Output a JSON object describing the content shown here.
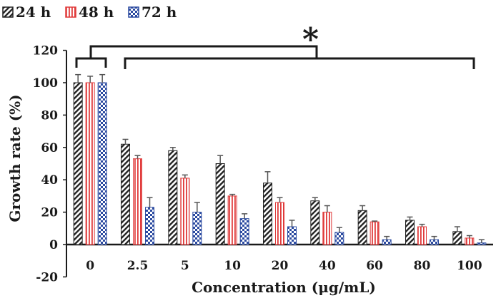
{
  "chart_data": {
    "type": "bar",
    "xlabel": "Concentration (μg/mL)",
    "ylabel": "Growth rate (%)",
    "ylim": [
      -20,
      120
    ],
    "ytick_step": 20,
    "yticks": [
      "-20",
      "0",
      "20",
      "40",
      "60",
      "80",
      "100",
      "120"
    ],
    "categories": [
      "0",
      "2.5",
      "5",
      "10",
      "20",
      "40",
      "60",
      "80",
      "100"
    ],
    "series": [
      {
        "name": "24 h",
        "pattern": "diagonal-stripes",
        "color": "#222222",
        "values": [
          100,
          62,
          58,
          50,
          38,
          27,
          21,
          15,
          8
        ],
        "errors": [
          5,
          3,
          2,
          5,
          7,
          2,
          3,
          2,
          3
        ]
      },
      {
        "name": "48 h",
        "pattern": "vertical-stripes",
        "color": "#e03a3a",
        "values": [
          100,
          53,
          41,
          30,
          26,
          20,
          14,
          11,
          4
        ],
        "errors": [
          4,
          2,
          2,
          1,
          3,
          4,
          0.5,
          1.5,
          1.5
        ]
      },
      {
        "name": "72 h",
        "pattern": "checkerboard",
        "color": "#2b4aa0",
        "values": [
          100,
          23,
          20,
          16,
          11,
          7.5,
          3,
          3,
          1
        ],
        "errors": [
          5,
          6,
          6,
          3,
          4,
          3,
          2,
          2,
          2
        ]
      }
    ],
    "legend_position": "top-left",
    "grid": false,
    "annotation": {
      "text": "*",
      "meaning": "significance bracket: group 0 vs 2.5–100"
    }
  }
}
